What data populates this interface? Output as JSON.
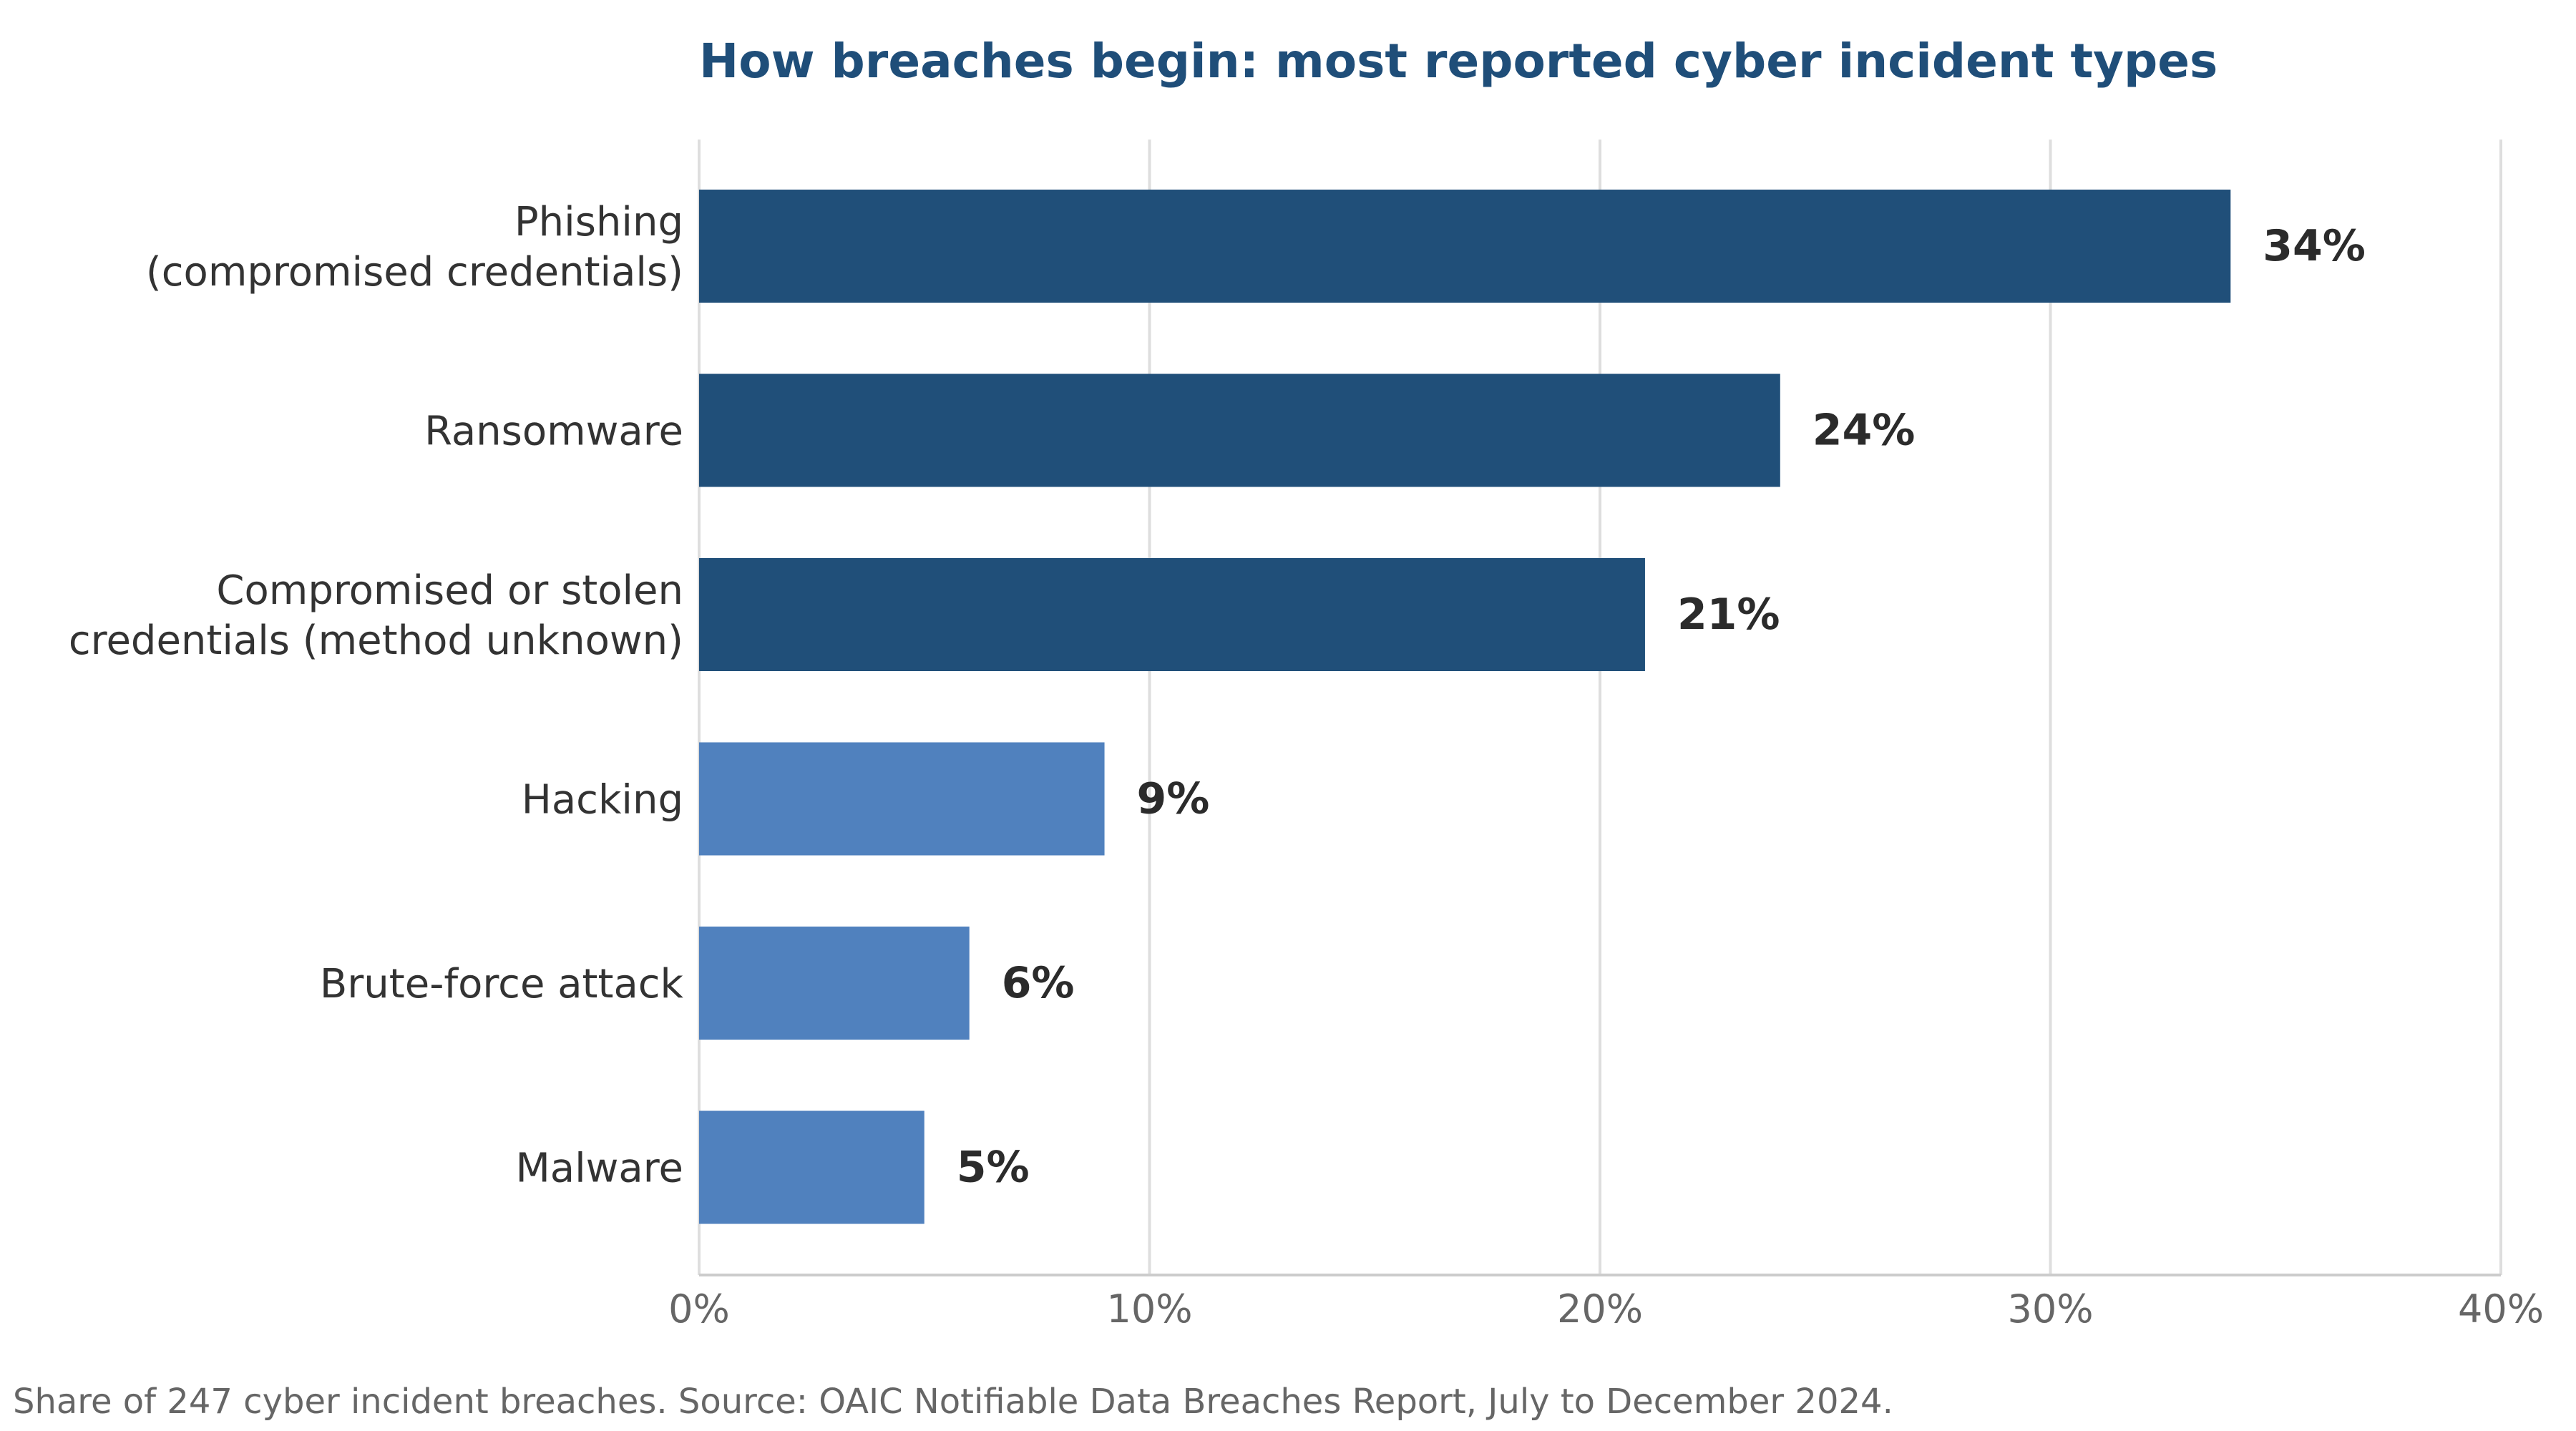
{
  "chart_data": {
    "type": "bar",
    "orientation": "horizontal",
    "title": "How breaches begin: most reported cyber incident types",
    "categories": [
      [
        "Phishing",
        "(compromised credentials)"
      ],
      [
        "Ransomware"
      ],
      [
        "Compromised or stolen",
        "credentials (method unknown)"
      ],
      [
        "Hacking"
      ],
      [
        "Brute-force attack"
      ],
      [
        "Malware"
      ]
    ],
    "values": [
      34,
      24,
      21,
      9,
      6,
      5
    ],
    "value_labels": [
      "34%",
      "24%",
      "21%",
      "9%",
      "6%",
      "5%"
    ],
    "xlim": [
      0,
      40
    ],
    "xticks": [
      0,
      10,
      20,
      30,
      40
    ],
    "xtick_labels": [
      "0%",
      "10%",
      "20%",
      "30%",
      "40%"
    ],
    "xlabel": "",
    "ylabel": "",
    "grid": "vertical",
    "colors": {
      "top_three": "#204f79",
      "others": "#5081be",
      "title": "#1f4e79"
    },
    "footnote": "Share of 247 cyber incident breaches. Source: OAIC Notifiable Data Breaches Report, July to December 2024."
  }
}
